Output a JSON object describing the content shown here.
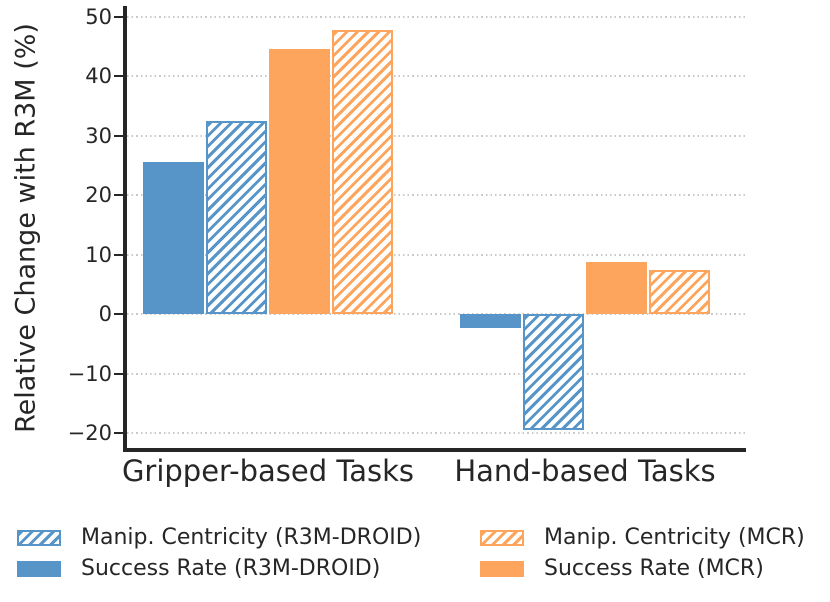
{
  "chart_data": {
    "type": "bar",
    "title": "",
    "categories": [
      "Gripper-based Tasks",
      "Hand-based Tasks"
    ],
    "series": [
      {
        "name": "Success Rate (R3M-DROID)",
        "color": "#5795C8",
        "hatch": false,
        "values": [
          25.5,
          -2.3
        ]
      },
      {
        "name": "Manip. Centricity (R3M-DROID)",
        "color": "#5795C8",
        "hatch": true,
        "values": [
          32.4,
          -19.5
        ]
      },
      {
        "name": "Success Rate (MCR)",
        "color": "#FDA55C",
        "hatch": false,
        "values": [
          44.6,
          8.7
        ]
      },
      {
        "name": "Manip. Centricity (MCR)",
        "color": "#FDA55C",
        "hatch": true,
        "values": [
          47.7,
          7.4
        ]
      }
    ],
    "xlabel": "",
    "ylabel": "Relative Change with R3M (%)",
    "ylim": [
      -22.5,
      51.8
    ],
    "yticks": [
      -20,
      -10,
      0,
      10,
      20,
      30,
      40,
      50
    ],
    "grid": "horizontal dotted",
    "legend_position": "below plot, two columns, hatched entry above solid entry"
  },
  "legend": {
    "columns": [
      [
        1,
        0
      ],
      [
        3,
        2
      ]
    ]
  },
  "colors": {
    "axis_and_text": "#262626",
    "gridline": "#c9c9c9",
    "blue": "#5795C8",
    "orange": "#FDA55C",
    "background": "#ffffff"
  }
}
